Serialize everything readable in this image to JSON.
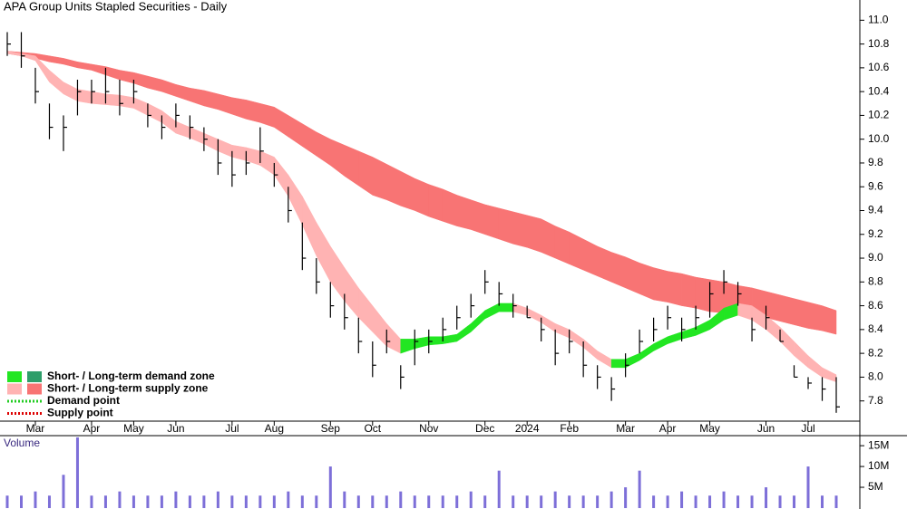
{
  "chart_data": {
    "type": "ohlc",
    "title": "APA Group Units Stapled Securities - Daily",
    "categories": [
      null,
      null,
      "Mar",
      null,
      null,
      null,
      "Apr",
      null,
      null,
      "May",
      null,
      null,
      "Jun",
      null,
      null,
      null,
      "Jul",
      null,
      null,
      "Aug",
      null,
      null,
      null,
      "Sep",
      null,
      null,
      "Oct",
      null,
      null,
      null,
      "Nov",
      null,
      null,
      null,
      "Dec",
      null,
      null,
      "2024",
      null,
      null,
      "Feb",
      null,
      null,
      null,
      "Mar",
      null,
      null,
      "Apr",
      null,
      null,
      "May",
      null,
      null,
      null,
      "Jun",
      null,
      null,
      "Jul",
      null,
      null
    ],
    "high": [
      10.9,
      10.9,
      10.6,
      10.3,
      10.2,
      10.5,
      10.5,
      10.6,
      10.5,
      10.5,
      10.3,
      10.2,
      10.3,
      10.2,
      10.1,
      10.0,
      9.9,
      9.9,
      10.1,
      9.8,
      9.6,
      9.3,
      9.0,
      8.8,
      8.7,
      8.5,
      8.3,
      8.4,
      8.1,
      8.4,
      8.4,
      8.5,
      8.6,
      8.7,
      8.9,
      8.8,
      8.7,
      8.6,
      8.5,
      8.4,
      8.4,
      8.3,
      8.1,
      8.0,
      8.2,
      8.4,
      8.5,
      8.6,
      8.5,
      8.6,
      8.8,
      8.9,
      8.8,
      8.5,
      8.6,
      8.4,
      8.1,
      8.0,
      8.0,
      8.0
    ],
    "low": [
      10.7,
      10.6,
      10.3,
      10.0,
      9.9,
      10.2,
      10.3,
      10.3,
      10.2,
      10.3,
      10.1,
      10.0,
      10.1,
      10.0,
      9.9,
      9.7,
      9.6,
      9.7,
      9.8,
      9.6,
      9.3,
      8.9,
      8.7,
      8.5,
      8.4,
      8.2,
      8.0,
      8.2,
      7.9,
      8.1,
      8.2,
      8.3,
      8.4,
      8.5,
      8.7,
      8.6,
      8.5,
      8.5,
      8.3,
      8.1,
      8.2,
      8.0,
      7.9,
      7.8,
      8.0,
      8.2,
      8.3,
      8.4,
      8.3,
      8.4,
      8.5,
      8.7,
      8.6,
      8.3,
      8.4,
      8.3,
      8.0,
      7.9,
      7.8,
      7.7
    ],
    "close": [
      10.8,
      10.7,
      10.4,
      10.1,
      10.1,
      10.4,
      10.4,
      10.4,
      10.3,
      10.4,
      10.2,
      10.1,
      10.2,
      10.1,
      10.0,
      9.8,
      9.7,
      9.8,
      9.9,
      9.7,
      9.4,
      9.0,
      8.8,
      8.6,
      8.5,
      8.3,
      8.1,
      8.3,
      8.0,
      8.3,
      8.3,
      8.4,
      8.5,
      8.6,
      8.8,
      8.7,
      8.6,
      8.5,
      8.4,
      8.2,
      8.3,
      8.1,
      8.0,
      7.9,
      8.1,
      8.3,
      8.4,
      8.5,
      8.4,
      8.5,
      8.7,
      8.8,
      8.7,
      8.4,
      8.5,
      8.3,
      8.0,
      7.95,
      7.9,
      7.75
    ],
    "bar_color": "#000000",
    "ylim": [
      7.63,
      11.17
    ],
    "yticks": [
      7.8,
      {
        "value": 8,
        "label": "8.0"
      },
      8.2,
      8.4,
      8.6,
      8.8,
      {
        "value": 9,
        "label": "9.0"
      },
      9.2,
      9.4,
      9.6,
      9.8,
      {
        "value": 10,
        "label": "10.0"
      },
      10.2,
      10.4,
      10.6,
      10.8,
      {
        "value": 11,
        "label": "11.0"
      }
    ],
    "bands": [
      {
        "upper": [
          10.74,
          10.73,
          10.72,
          10.7,
          10.68,
          10.65,
          10.63,
          10.61,
          10.58,
          10.56,
          10.53,
          10.5,
          10.46,
          10.43,
          10.41,
          10.38,
          10.35,
          10.33,
          10.3,
          10.27,
          10.2,
          10.13,
          10.06,
          10.0,
          9.95,
          9.9,
          9.85,
          9.79,
          9.73,
          9.67,
          9.62,
          9.58,
          9.53,
          9.49,
          9.45,
          9.42,
          9.39,
          9.36,
          9.33,
          9.27,
          9.22,
          9.16,
          9.1,
          9.05,
          9.01,
          8.96,
          8.92,
          8.89,
          8.87,
          8.84,
          8.82,
          8.8,
          8.77,
          8.75,
          8.72,
          8.69,
          8.66,
          8.63,
          8.6,
          8.56
        ],
        "lower": [
          10.72,
          10.7,
          10.68,
          10.65,
          10.63,
          10.6,
          10.58,
          10.54,
          10.5,
          10.47,
          10.43,
          10.4,
          10.36,
          10.32,
          10.28,
          10.25,
          10.21,
          10.17,
          10.14,
          10.1,
          10.02,
          9.94,
          9.86,
          9.78,
          9.69,
          9.61,
          9.53,
          9.49,
          9.44,
          9.4,
          9.35,
          9.31,
          9.27,
          9.24,
          9.2,
          9.16,
          9.12,
          9.09,
          9.05,
          9.0,
          8.95,
          8.9,
          8.85,
          8.8,
          8.75,
          8.7,
          8.65,
          8.63,
          8.6,
          8.58,
          8.55,
          8.54,
          8.53,
          8.52,
          8.5,
          8.47,
          8.44,
          8.41,
          8.39,
          8.36
        ],
        "rising_color": "#2e9e6a",
        "falling_color": "#f87474"
      },
      {
        "upper": [
          10.74,
          10.72,
          10.7,
          10.58,
          10.48,
          10.42,
          10.4,
          10.38,
          10.37,
          10.35,
          10.3,
          10.24,
          10.15,
          10.1,
          10.05,
          10.0,
          9.95,
          9.93,
          9.9,
          9.85,
          9.7,
          9.52,
          9.3,
          9.1,
          8.92,
          8.75,
          8.6,
          8.45,
          8.32,
          8.32,
          8.34,
          8.34,
          8.36,
          8.45,
          8.56,
          8.62,
          8.62,
          8.58,
          8.52,
          8.45,
          8.4,
          8.32,
          8.22,
          8.15,
          8.15,
          8.2,
          8.28,
          8.34,
          8.38,
          8.42,
          8.48,
          8.58,
          8.62,
          8.6,
          8.52,
          8.42,
          8.3,
          8.18,
          8.08,
          8.02
        ],
        "lower": [
          10.72,
          10.7,
          10.66,
          10.48,
          10.38,
          10.32,
          10.3,
          10.29,
          10.28,
          10.26,
          10.2,
          10.14,
          10.05,
          10.01,
          9.96,
          9.9,
          9.85,
          9.82,
          9.78,
          9.7,
          9.52,
          9.28,
          9.02,
          8.8,
          8.64,
          8.5,
          8.38,
          8.26,
          8.2,
          8.24,
          8.27,
          8.28,
          8.3,
          8.38,
          8.49,
          8.55,
          8.55,
          8.52,
          8.46,
          8.38,
          8.33,
          8.25,
          8.15,
          8.08,
          8.08,
          8.14,
          8.22,
          8.28,
          8.32,
          8.35,
          8.4,
          8.48,
          8.52,
          8.48,
          8.4,
          8.3,
          8.18,
          8.08,
          8.0,
          7.96
        ],
        "rising_color": "#22e622",
        "falling_color": "#ffb3b3"
      }
    ],
    "legend": [
      {
        "label": "Short- / Long-term demand zone",
        "colors": [
          "#22e622",
          "#2e9e6a"
        ]
      },
      {
        "label": "Short- / Long-term supply zone",
        "colors": [
          "#ffb3b3",
          "#f87474"
        ]
      },
      {
        "label": "Demand point",
        "color": "#22cc22"
      },
      {
        "label": "Supply point",
        "color": "#dd0000"
      }
    ],
    "volume": {
      "title": "Volume",
      "color": "#7d6fd8",
      "values": [
        3000000,
        3000000,
        4000000,
        3000000,
        8000000,
        17000000,
        3000000,
        3000000,
        4000000,
        3000000,
        3000000,
        3000000,
        4000000,
        3000000,
        3000000,
        4000000,
        3000000,
        3000000,
        3000000,
        3000000,
        4000000,
        3000000,
        3000000,
        10000000,
        4000000,
        3000000,
        3000000,
        3000000,
        4000000,
        3000000,
        3000000,
        3000000,
        3000000,
        4000000,
        3000000,
        9000000,
        3000000,
        3000000,
        3000000,
        4000000,
        3000000,
        3000000,
        3000000,
        4000000,
        5000000,
        9000000,
        3000000,
        3000000,
        4000000,
        3000000,
        3000000,
        4000000,
        3000000,
        3000000,
        5000000,
        3000000,
        3000000,
        10000000,
        3000000,
        3000000
      ],
      "ylim": [
        0,
        17200000
      ],
      "yticks": [
        {
          "value": 5000000,
          "label": "5M"
        },
        {
          "value": 10000000,
          "label": "10M"
        },
        {
          "value": 15000000,
          "label": "15M"
        }
      ]
    }
  }
}
